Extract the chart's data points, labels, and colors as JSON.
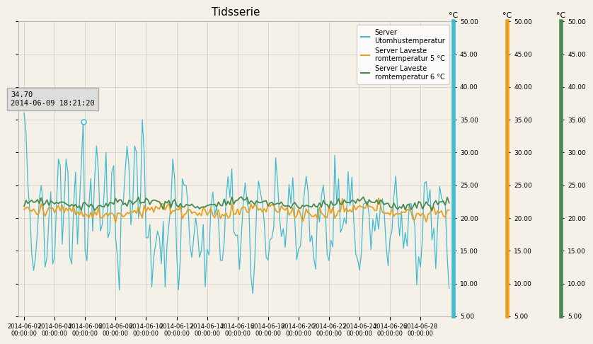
{
  "title": "Tidsserie",
  "ylabel_right": "°C",
  "ylim": [
    5.0,
    50.0
  ],
  "yticks": [
    5.0,
    10.0,
    15.0,
    20.0,
    25.0,
    30.0,
    35.0,
    40.0,
    45.0,
    50.0
  ],
  "xticklabels": [
    "2014-06-02\n00:00:00",
    "2014-06-04\n00:00:00",
    "2014-06-06\n00:00:00",
    "2014-06-08\n00:00:00",
    "2014-06-10\n00:00:00",
    "2014-06-12\n00:00:00",
    "2014-06-14\n00:00:00",
    "2014-06-16\n00:00:00",
    "2014-06-18\n00:00:00",
    "2014-06-20\n00:00:00",
    "2014-06-22\n00:00:00",
    "2014-06-24\n00:00:00",
    "2014-06-26\n00:00:00",
    "2014-06-28\n00:00:00"
  ],
  "color_cyan": "#40bcd0",
  "color_orange": "#e8a020",
  "color_green": "#4a8a50",
  "bg_color": "#f5f0e8",
  "grid_color": "#d5d0c8",
  "legend_label1": "Server\nUtomhustemperatur",
  "legend_label2": "Server Laveste\nromtemperatur 5 °C",
  "legend_label3": "Server Laveste\nromtemperatur 6 °C",
  "tooltip_text": "34.70\n2014-06-09 18:21:20",
  "right_axis1_color": "#40bcd0",
  "right_axis2_color": "#e8a020",
  "right_axis3_color": "#4a8a50"
}
